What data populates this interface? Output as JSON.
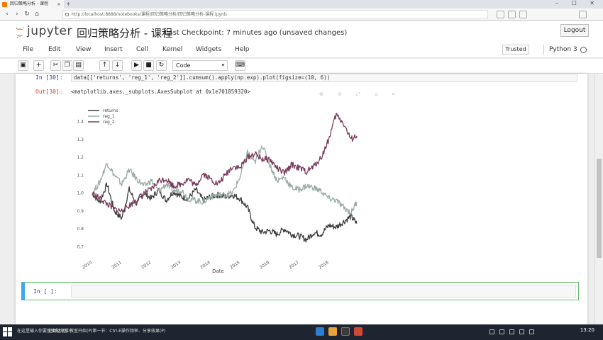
{
  "browser": {
    "tab_title": "回归策略分析 - 课程",
    "tab_close": "×",
    "new_tab": "+",
    "url": "http://localhost:8888/notebooks/课程/回归策略分析/回归策略分析-课程.ipynb",
    "window_controls": "– ☐ ✕"
  },
  "notebook": {
    "logo_text": "jupyter",
    "title": "回归策略分析 - 课程",
    "checkpoint": "Last Checkpoint: 7 minutes ago (unsaved changes)",
    "logout_label": "Logout",
    "trusted_label": "Trusted",
    "kernel_name": "Python 3"
  },
  "menu": [
    "File",
    "Edit",
    "View",
    "Insert",
    "Cell",
    "Kernel",
    "Widgets",
    "Help"
  ],
  "toolbar": {
    "cell_type": "Code",
    "icons": [
      "save-icon",
      "plus-icon",
      "cut-icon",
      "copy-icon",
      "paste-icon",
      "arrow-up-icon",
      "arrow-down-icon",
      "run-icon",
      "stop-icon",
      "restart-icon",
      "keyboard-icon"
    ]
  },
  "cells": {
    "code_prompt": "In [30]:",
    "code": "data[['returns', 'reg_1', 'reg_2']].cumsum().apply(np.exp).plot(figsize=(10, 6))",
    "out_prompt": "Out[30]:",
    "out_text": "<matplotlib.axes._subplots.AxesSubplot at 0x1e701859320>",
    "empty_prompt": "In [ ]:"
  },
  "chart_data": {
    "type": "line",
    "xlabel": "Date",
    "ylabel": "",
    "xlim": [
      2010.0,
      2019.0
    ],
    "ylim": [
      0.65,
      1.47
    ],
    "x_ticks": [
      "2010",
      "2011",
      "2012",
      "2013",
      "2014",
      "2015",
      "2016",
      "2017",
      "2018"
    ],
    "y_ticks": [
      "0.7",
      "0.8",
      "0.9",
      "1.0",
      "1.1",
      "1.2",
      "1.3",
      "1.4"
    ],
    "legend": "top-left",
    "x": [
      2010.0,
      2010.25,
      2010.5,
      2010.75,
      2011.0,
      2011.25,
      2011.5,
      2011.75,
      2012.0,
      2012.25,
      2012.5,
      2012.75,
      2013.0,
      2013.25,
      2013.5,
      2013.75,
      2014.0,
      2014.25,
      2014.5,
      2014.75,
      2015.0,
      2015.25,
      2015.5,
      2015.75,
      2016.0,
      2016.25,
      2016.5,
      2016.75,
      2017.0,
      2017.25,
      2017.5,
      2017.75,
      2018.0,
      2018.25,
      2018.5,
      2018.75,
      2018.95
    ],
    "series": [
      {
        "name": "returns",
        "color": "#3d3d3d",
        "values": [
          1.0,
          0.95,
          1.05,
          0.9,
          0.86,
          1.02,
          0.94,
          1.0,
          0.97,
          1.02,
          0.96,
          1.01,
          0.98,
          0.97,
          1.02,
          0.96,
          0.98,
          0.99,
          0.98,
          0.99,
          0.97,
          0.92,
          0.81,
          0.78,
          0.79,
          0.77,
          0.8,
          0.77,
          0.76,
          0.74,
          0.78,
          0.77,
          0.82,
          0.81,
          0.84,
          0.87,
          0.83
        ]
      },
      {
        "name": "reg_1",
        "color": "#9aaea4",
        "values": [
          1.0,
          1.06,
          1.17,
          1.1,
          1.05,
          1.13,
          1.08,
          1.04,
          1.07,
          1.01,
          1.05,
          1.01,
          1.02,
          0.97,
          0.96,
          0.95,
          0.98,
          0.99,
          0.99,
          1.0,
          1.09,
          1.23,
          1.17,
          1.27,
          1.16,
          1.07,
          1.09,
          1.03,
          1.02,
          1.04,
          1.03,
          1.01,
          0.97,
          0.96,
          0.92,
          0.89,
          0.95
        ]
      },
      {
        "name": "reg_2",
        "color": "#7b3c5c",
        "values": [
          1.0,
          0.97,
          0.94,
          0.91,
          0.9,
          0.93,
          0.96,
          1.0,
          1.02,
          1.07,
          1.08,
          1.04,
          1.05,
          1.08,
          1.04,
          1.11,
          1.08,
          1.05,
          1.1,
          1.15,
          1.14,
          1.2,
          1.22,
          1.19,
          1.19,
          1.14,
          1.11,
          1.16,
          1.14,
          1.12,
          1.15,
          1.2,
          1.3,
          1.44,
          1.39,
          1.3,
          1.32
        ]
      }
    ]
  },
  "taskbar": {
    "search_text": "在这里输入你要搜索的内容",
    "status_text": "已到达初中教室开始(P)第一节：Ctrl-E操作频率、分享效果(P)",
    "time": "13:20"
  }
}
